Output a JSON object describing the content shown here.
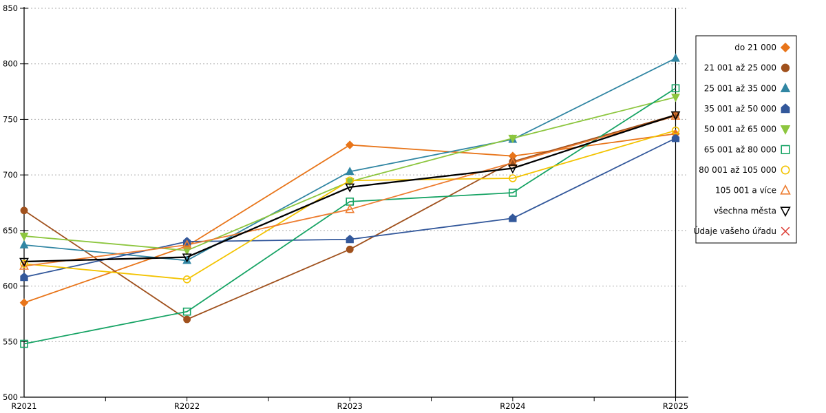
{
  "chart_data": {
    "type": "line",
    "title": "",
    "xlabel": "",
    "ylabel": "",
    "x_categories": [
      "R2021",
      "R2022",
      "R2023",
      "R2024",
      "R2025"
    ],
    "ylim": [
      500,
      850
    ],
    "y_ticks": [
      500,
      550,
      600,
      650,
      700,
      750,
      800,
      850
    ],
    "grid": "horizontal dotted gridlines",
    "legend_position": "outside right, boxed",
    "series": [
      {
        "name": "do 21 000",
        "color": "#E8751A",
        "marker": "diamond",
        "filled": true,
        "line_width": 1.8,
        "values": [
          585,
          636,
          727,
          717,
          737
        ]
      },
      {
        "name": "21 001 až 25 000",
        "color": "#A0511D",
        "marker": "circle",
        "filled": true,
        "line_width": 1.8,
        "values": [
          668,
          570,
          633,
          712,
          754
        ]
      },
      {
        "name": "25 001 až 35 000",
        "color": "#3186A3",
        "marker": "triangle-up",
        "filled": true,
        "line_width": 1.8,
        "values": [
          637,
          623,
          703,
          732,
          805
        ]
      },
      {
        "name": "35 001 až 50 000",
        "color": "#33589B",
        "marker": "pentagon",
        "filled": true,
        "line_width": 1.8,
        "values": [
          608,
          640,
          642,
          661,
          733
        ]
      },
      {
        "name": "50 001 až 65 000",
        "color": "#8DC63F",
        "marker": "triangle-down",
        "filled": true,
        "line_width": 1.8,
        "values": [
          645,
          632,
          694,
          733,
          770
        ]
      },
      {
        "name": "65 001 až 80 000",
        "color": "#16A364",
        "marker": "square",
        "filled": false,
        "line_width": 1.8,
        "values": [
          548,
          577,
          676,
          684,
          778
        ]
      },
      {
        "name": "80 001 až 105 000",
        "color": "#F3C300",
        "marker": "circle",
        "filled": false,
        "line_width": 1.8,
        "values": [
          620,
          606,
          695,
          697,
          740
        ]
      },
      {
        "name": "105 001 a více",
        "color": "#ED7D31",
        "marker": "triangle-up",
        "filled": false,
        "line_width": 1.8,
        "values": [
          618,
          637,
          669,
          711,
          753
        ]
      },
      {
        "name": "všechna města",
        "color": "#000000",
        "marker": "triangle-down",
        "filled": false,
        "line_width": 2.3,
        "values": [
          622,
          626,
          689,
          706,
          754
        ]
      },
      {
        "name": "Údaje vašeho úřadu",
        "color": "#DC3B32",
        "marker": "x",
        "filled": false,
        "line_width": 1.8,
        "values": []
      }
    ]
  },
  "layout_colors": {
    "axis": "#000000",
    "gridline": "#ADADAD",
    "legend_border": "#000000",
    "background": "#FFFFFF"
  }
}
